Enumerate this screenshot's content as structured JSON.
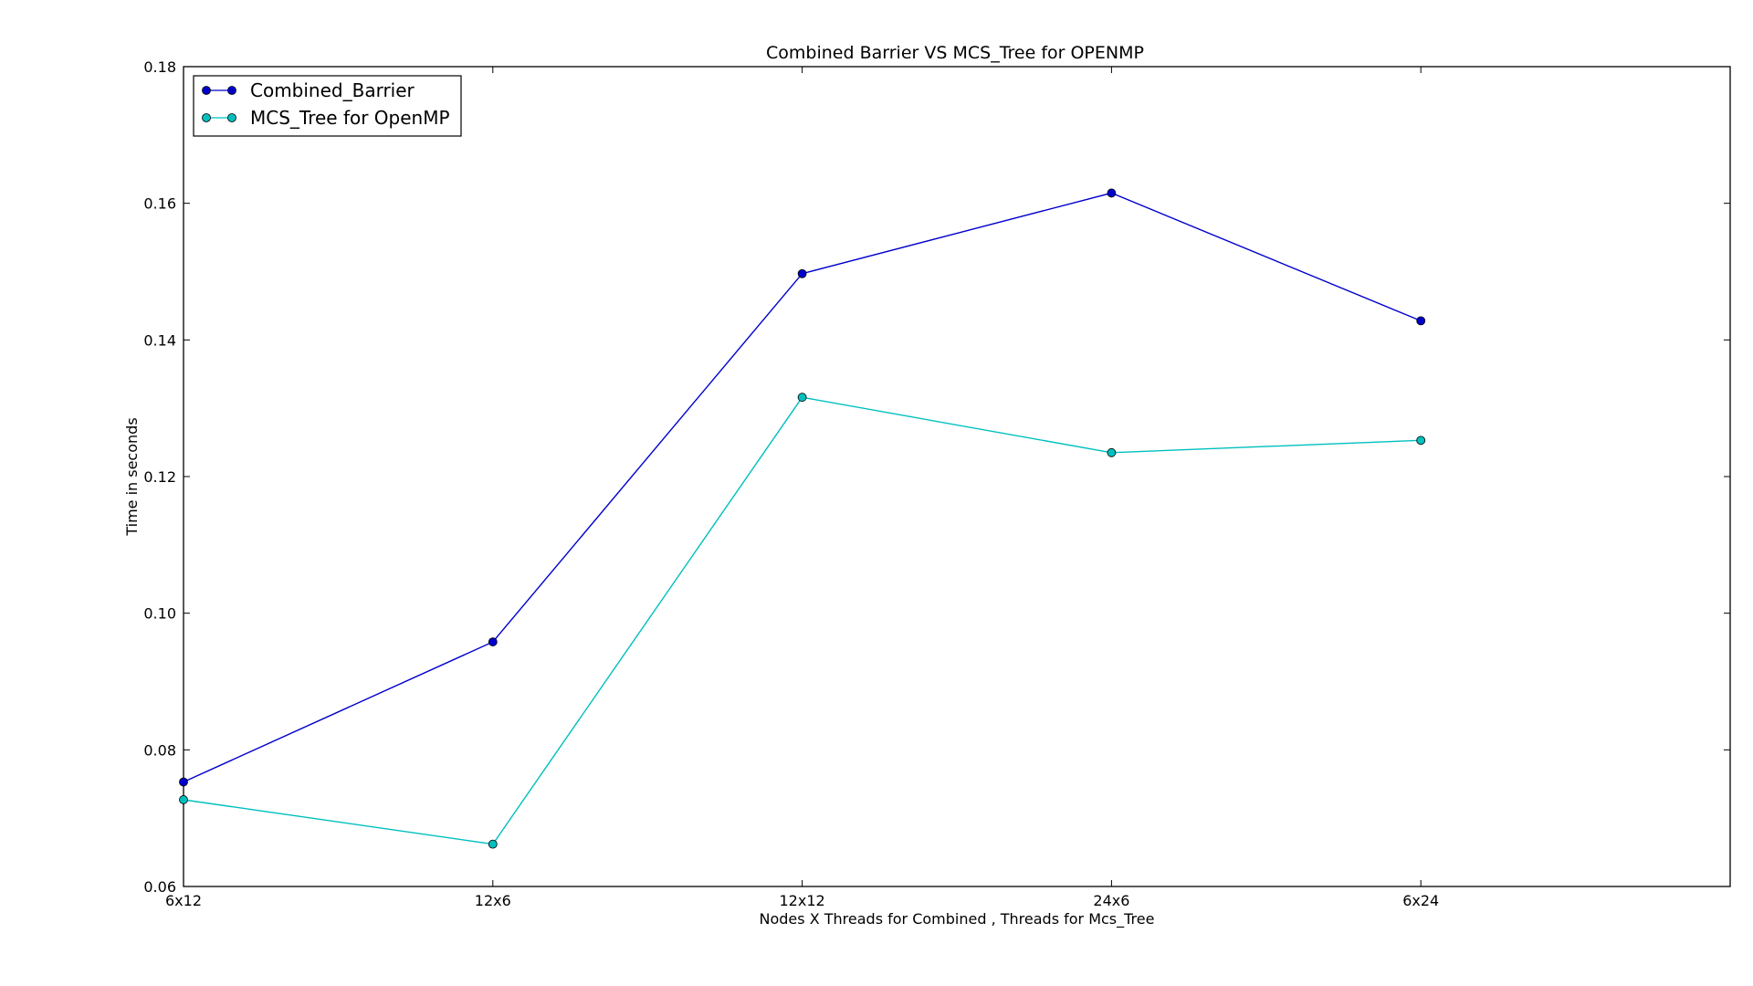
{
  "chart_data": {
    "type": "line",
    "title": "Combined Barrier VS MCS_Tree for OPENMP",
    "xlabel": "Nodes X Threads for Combined , Threads for Mcs_Tree",
    "ylabel": "Time in seconds",
    "categories": [
      "6x12",
      "12x6",
      "12x12",
      "24x6",
      "6x24"
    ],
    "xlim": [
      0,
      5
    ],
    "ylim": [
      0.06,
      0.18
    ],
    "yticks": [
      "0.06",
      "0.08",
      "0.10",
      "0.12",
      "0.14",
      "0.16",
      "0.18"
    ],
    "grid": false,
    "legend_position": "top-left",
    "series": [
      {
        "name": "Combined_Barrier",
        "color": "#0000cc",
        "values": [
          0.0753,
          0.0958,
          0.1497,
          0.1615,
          0.1428
        ]
      },
      {
        "name": "MCS_Tree for OpenMP",
        "color": "#00bfbf",
        "values": [
          0.0727,
          0.0662,
          0.1316,
          0.1235,
          0.1253
        ]
      }
    ]
  }
}
